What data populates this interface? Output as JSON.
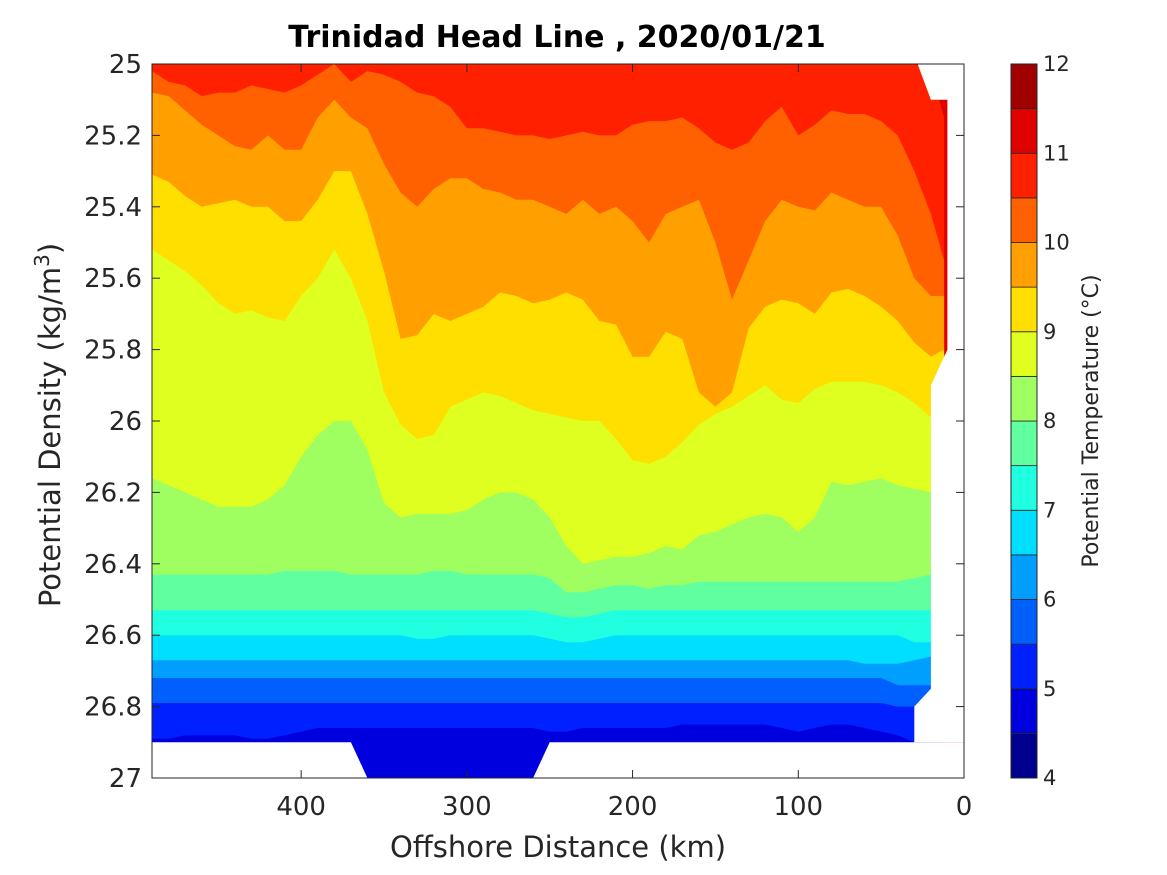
{
  "chart_data": {
    "type": "contour",
    "title": "Trinidad Head Line , 2020/01/21",
    "xlabel": "Offshore Distance (km)",
    "ylabel": "Potential Density (kg/m",
    "ylabel_sup": "3",
    "ylabel_close": ")",
    "xlim": [
      490,
      0
    ],
    "ylim": [
      25,
      27
    ],
    "x_reversed": true,
    "y_reversed": true,
    "x_ticks": [
      400,
      300,
      200,
      100,
      0
    ],
    "x_tick_labels": [
      "400",
      "300",
      "200",
      "100",
      "0"
    ],
    "y_ticks": [
      25,
      25.2,
      25.4,
      25.6,
      25.8,
      26,
      26.2,
      26.4,
      26.6,
      26.8,
      27
    ],
    "y_tick_labels": [
      "25",
      "25.2",
      "25.4",
      "25.6",
      "25.8",
      "26",
      "26.2",
      "26.4",
      "26.6",
      "26.8",
      "27"
    ],
    "colorbar": {
      "label": "Potential Temperature (°C)",
      "range": [
        4,
        12
      ],
      "tick_values": [
        4,
        5,
        6,
        7,
        8,
        9,
        10,
        11,
        12
      ],
      "tick_labels": [
        "4",
        "5",
        "6",
        "7",
        "8",
        "9",
        "10",
        "11",
        "12"
      ],
      "levels": [
        4,
        4.5,
        5,
        5.5,
        6,
        6.5,
        7,
        7.5,
        8,
        8.5,
        9,
        9.5,
        10,
        10.5,
        11,
        11.5,
        12
      ],
      "colors": [
        "#00008f",
        "#0000df",
        "#0020ff",
        "#0060ff",
        "#009fff",
        "#00dfff",
        "#20ffdf",
        "#60ff9f",
        "#9fff60",
        "#dfff20",
        "#ffdf00",
        "#ff9f00",
        "#ff6000",
        "#ff2000",
        "#df0000",
        "#9f0000"
      ]
    },
    "x": [
      12,
      20,
      30,
      40,
      50,
      60,
      70,
      80,
      90,
      100,
      110,
      120,
      130,
      140,
      150,
      160,
      170,
      180,
      190,
      200,
      210,
      220,
      230,
      240,
      250,
      260,
      270,
      280,
      290,
      300,
      310,
      320,
      330,
      340,
      350,
      360,
      370,
      380,
      390,
      400,
      410,
      420,
      430,
      440,
      450,
      460,
      470,
      480,
      490
    ],
    "isopycnal_boundaries": [
      {
        "below_level": 11,
        "y": [
          25.15,
          25.02,
          25.0,
          25.0,
          25.0,
          25.0,
          25.0,
          25.0,
          25.0,
          25.0,
          25.0,
          25.0,
          25.0,
          25.0,
          25.0,
          25.0,
          25.0,
          25.0,
          25.0,
          25.0,
          25.0,
          25.0,
          25.0,
          25.0,
          25.0,
          25.0,
          25.0,
          25.0,
          25.0,
          25.0,
          25.0,
          25.0,
          25.0,
          25.0,
          25.0,
          25.0,
          25.0,
          25.0,
          25.0,
          25.0,
          25.0,
          25.0,
          25.0,
          25.0,
          25.0,
          25.0,
          25.0,
          25.0,
          25.0
        ]
      },
      {
        "below_level": 10.5,
        "y": [
          25.55,
          25.42,
          25.3,
          25.2,
          25.16,
          25.14,
          25.14,
          25.13,
          25.17,
          25.2,
          25.12,
          25.16,
          25.22,
          25.24,
          25.22,
          25.18,
          25.15,
          25.16,
          25.16,
          25.17,
          25.2,
          25.2,
          25.19,
          25.2,
          25.21,
          25.2,
          25.2,
          25.19,
          25.18,
          25.18,
          25.12,
          25.09,
          25.08,
          25.05,
          25.03,
          25.02,
          25.05,
          25.0,
          25.03,
          25.06,
          25.08,
          25.07,
          25.06,
          25.08,
          25.08,
          25.09,
          25.06,
          25.05,
          25.02
        ]
      },
      {
        "below_level": 10,
        "y": [
          25.65,
          25.65,
          25.6,
          25.48,
          25.4,
          25.4,
          25.38,
          25.36,
          25.41,
          25.4,
          25.38,
          25.44,
          25.55,
          25.66,
          25.5,
          25.38,
          25.4,
          25.42,
          25.5,
          25.44,
          25.4,
          25.42,
          25.38,
          25.42,
          25.4,
          25.38,
          25.38,
          25.36,
          25.35,
          25.32,
          25.32,
          25.35,
          25.4,
          25.36,
          25.28,
          25.18,
          25.15,
          25.1,
          25.15,
          25.24,
          25.24,
          25.2,
          25.24,
          25.23,
          25.2,
          25.17,
          25.13,
          25.09,
          25.08
        ]
      },
      {
        "below_level": 9.5,
        "y": [
          25.8,
          25.82,
          25.78,
          25.72,
          25.68,
          25.65,
          25.63,
          25.64,
          25.7,
          25.67,
          25.66,
          25.68,
          25.74,
          25.92,
          25.96,
          25.92,
          25.77,
          25.75,
          25.82,
          25.82,
          25.73,
          25.72,
          25.66,
          25.64,
          25.66,
          25.67,
          25.65,
          25.64,
          25.68,
          25.7,
          25.72,
          25.7,
          25.76,
          25.77,
          25.58,
          25.42,
          25.3,
          25.3,
          25.38,
          25.44,
          25.44,
          25.4,
          25.4,
          25.38,
          25.39,
          25.4,
          25.37,
          25.33,
          25.31
        ]
      },
      {
        "below_level": 9,
        "y": [
          25.98,
          25.99,
          25.95,
          25.92,
          25.9,
          25.89,
          25.89,
          25.89,
          25.91,
          25.95,
          25.94,
          25.9,
          25.93,
          25.96,
          25.98,
          26.01,
          26.06,
          26.1,
          26.12,
          26.11,
          26.05,
          26.0,
          26.0,
          25.99,
          25.98,
          25.97,
          25.95,
          25.93,
          25.92,
          25.94,
          25.96,
          26.04,
          26.05,
          26.01,
          25.92,
          25.72,
          25.6,
          25.52,
          25.6,
          25.65,
          25.72,
          25.71,
          25.69,
          25.7,
          25.67,
          25.62,
          25.58,
          25.55,
          25.52
        ]
      },
      {
        "below_level": 8.5,
        "y": [
          26.19,
          26.2,
          26.19,
          26.18,
          26.16,
          26.17,
          26.18,
          26.17,
          26.27,
          26.31,
          26.27,
          26.26,
          26.27,
          26.29,
          26.31,
          26.32,
          26.36,
          26.35,
          26.37,
          26.38,
          26.38,
          26.39,
          26.4,
          26.35,
          26.27,
          26.22,
          26.2,
          26.2,
          26.22,
          26.25,
          26.26,
          26.26,
          26.26,
          26.27,
          26.23,
          26.08,
          26.0,
          26.0,
          26.04,
          26.1,
          26.18,
          26.22,
          26.24,
          26.24,
          26.24,
          26.22,
          26.2,
          26.18,
          26.16
        ]
      },
      {
        "below_level": 8,
        "y": [
          26.42,
          26.43,
          26.44,
          26.45,
          26.45,
          26.45,
          26.45,
          26.45,
          26.45,
          26.45,
          26.45,
          26.45,
          26.45,
          26.45,
          26.45,
          26.45,
          26.46,
          26.46,
          26.47,
          26.46,
          26.46,
          26.47,
          26.48,
          26.48,
          26.44,
          26.43,
          26.43,
          26.43,
          26.43,
          26.43,
          26.42,
          26.42,
          26.43,
          26.43,
          26.43,
          26.43,
          26.43,
          26.42,
          26.42,
          26.42,
          26.42,
          26.43,
          26.43,
          26.43,
          26.43,
          26.43,
          26.43,
          26.43,
          26.43
        ]
      },
      {
        "below_level": 7.5,
        "y": [
          26.52,
          26.53,
          26.53,
          26.53,
          26.53,
          26.53,
          26.53,
          26.53,
          26.53,
          26.53,
          26.53,
          26.53,
          26.53,
          26.53,
          26.53,
          26.53,
          26.53,
          26.53,
          26.53,
          26.53,
          26.53,
          26.54,
          26.55,
          26.55,
          26.54,
          26.53,
          26.53,
          26.53,
          26.53,
          26.53,
          26.53,
          26.53,
          26.53,
          26.53,
          26.53,
          26.53,
          26.53,
          26.53,
          26.53,
          26.53,
          26.53,
          26.53,
          26.53,
          26.53,
          26.53,
          26.53,
          26.53,
          26.53,
          26.53
        ]
      },
      {
        "below_level": 7,
        "y": [
          26.6,
          26.62,
          26.62,
          26.6,
          26.6,
          26.6,
          26.6,
          26.6,
          26.6,
          26.6,
          26.6,
          26.6,
          26.6,
          26.6,
          26.6,
          26.6,
          26.6,
          26.6,
          26.6,
          26.6,
          26.6,
          26.61,
          26.62,
          26.62,
          26.61,
          26.6,
          26.6,
          26.6,
          26.6,
          26.6,
          26.6,
          26.61,
          26.61,
          26.6,
          26.6,
          26.6,
          26.6,
          26.6,
          26.6,
          26.6,
          26.6,
          26.6,
          26.6,
          26.6,
          26.6,
          26.6,
          26.6,
          26.6,
          26.6
        ]
      },
      {
        "below_level": 6.5,
        "y": [
          26.65,
          26.66,
          26.67,
          26.68,
          26.68,
          26.68,
          26.67,
          26.67,
          26.67,
          26.67,
          26.67,
          26.67,
          26.67,
          26.67,
          26.67,
          26.67,
          26.67,
          26.67,
          26.67,
          26.67,
          26.67,
          26.67,
          26.67,
          26.67,
          26.67,
          26.67,
          26.67,
          26.67,
          26.67,
          26.67,
          26.67,
          26.67,
          26.67,
          26.67,
          26.67,
          26.67,
          26.67,
          26.67,
          26.67,
          26.67,
          26.67,
          26.67,
          26.67,
          26.67,
          26.67,
          26.67,
          26.67,
          26.67,
          26.67
        ]
      },
      {
        "below_level": 6,
        "y": [
          26.72,
          26.74,
          26.74,
          26.74,
          26.72,
          26.72,
          26.72,
          26.72,
          26.72,
          26.72,
          26.72,
          26.72,
          26.72,
          26.72,
          26.72,
          26.72,
          26.72,
          26.72,
          26.72,
          26.72,
          26.72,
          26.72,
          26.72,
          26.72,
          26.72,
          26.72,
          26.72,
          26.72,
          26.72,
          26.72,
          26.72,
          26.72,
          26.72,
          26.72,
          26.72,
          26.72,
          26.72,
          26.72,
          26.72,
          26.72,
          26.72,
          26.72,
          26.72,
          26.72,
          26.72,
          26.72,
          26.72,
          26.72,
          26.72
        ]
      },
      {
        "below_level": 5.5,
        "y": [
          26.8,
          26.8,
          26.8,
          26.8,
          26.79,
          26.79,
          26.79,
          26.79,
          26.79,
          26.79,
          26.79,
          26.79,
          26.79,
          26.79,
          26.79,
          26.79,
          26.79,
          26.79,
          26.79,
          26.79,
          26.79,
          26.79,
          26.79,
          26.79,
          26.79,
          26.79,
          26.79,
          26.79,
          26.79,
          26.79,
          26.79,
          26.79,
          26.79,
          26.79,
          26.79,
          26.79,
          26.79,
          26.79,
          26.79,
          26.79,
          26.79,
          26.79,
          26.79,
          26.79,
          26.79,
          26.79,
          26.79,
          26.79,
          26.79
        ]
      },
      {
        "below_level": 5,
        "y": [
          26.9,
          26.9,
          26.9,
          26.88,
          26.87,
          26.86,
          26.85,
          26.85,
          26.86,
          26.87,
          26.86,
          26.85,
          26.85,
          26.85,
          26.85,
          26.85,
          26.85,
          26.86,
          26.86,
          26.86,
          26.86,
          26.86,
          26.86,
          26.87,
          26.87,
          26.86,
          26.86,
          26.86,
          26.86,
          26.86,
          26.86,
          26.86,
          26.86,
          26.86,
          26.86,
          26.86,
          26.86,
          26.86,
          26.86,
          26.87,
          26.88,
          26.89,
          26.89,
          26.88,
          26.88,
          26.88,
          26.88,
          26.89,
          26.89
        ]
      }
    ]
  }
}
